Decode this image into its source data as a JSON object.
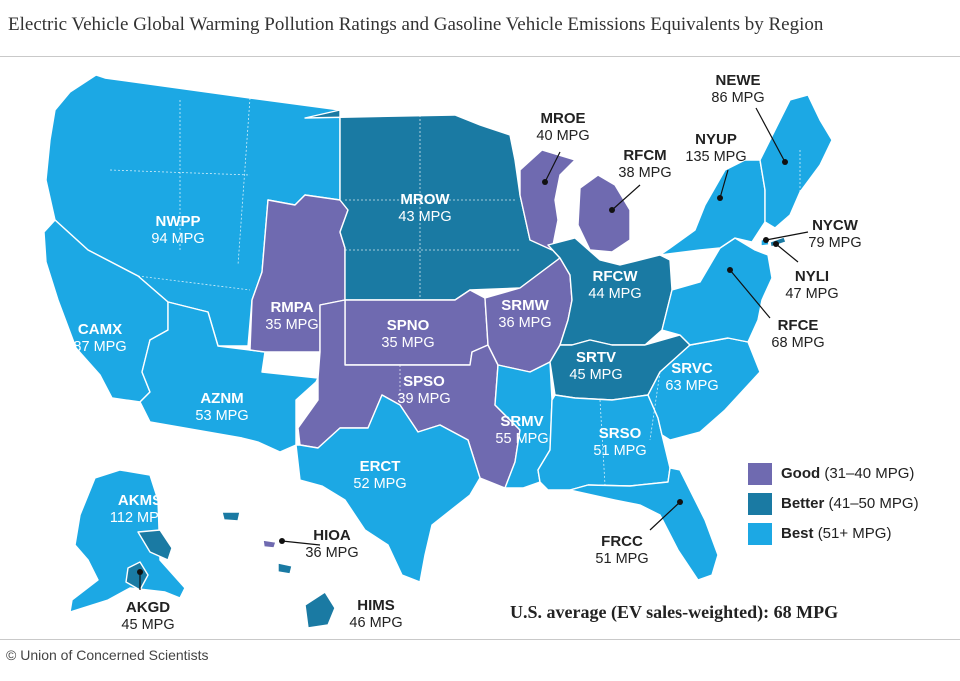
{
  "title": "Electric Vehicle Global Warming Pollution Ratings and Gasoline Vehicle Emissions Equivalents by Region",
  "colors": {
    "good": "#6f6ab0",
    "better": "#1a7aa3",
    "best": "#1ca8e4",
    "white": "#ffffff",
    "label_dark": "#222222"
  },
  "regions": [
    {
      "code": "NWPP",
      "mpg": "94 MPG",
      "category": "best"
    },
    {
      "code": "CAMX",
      "mpg": "87 MPG",
      "category": "best"
    },
    {
      "code": "AZNM",
      "mpg": "53 MPG",
      "category": "best"
    },
    {
      "code": "RMPA",
      "mpg": "35 MPG",
      "category": "good"
    },
    {
      "code": "MROW",
      "mpg": "43 MPG",
      "category": "better"
    },
    {
      "code": "SPNO",
      "mpg": "35 MPG",
      "category": "good"
    },
    {
      "code": "SPSO",
      "mpg": "39 MPG",
      "category": "good"
    },
    {
      "code": "ERCT",
      "mpg": "52 MPG",
      "category": "best"
    },
    {
      "code": "MROE",
      "mpg": "40 MPG",
      "category": "good"
    },
    {
      "code": "SRMW",
      "mpg": "36 MPG",
      "category": "good"
    },
    {
      "code": "SRMV",
      "mpg": "55 MPG",
      "category": "best"
    },
    {
      "code": "RFCM",
      "mpg": "38 MPG",
      "category": "good"
    },
    {
      "code": "RFCW",
      "mpg": "44 MPG",
      "category": "better"
    },
    {
      "code": "SRTV",
      "mpg": "45 MPG",
      "category": "better"
    },
    {
      "code": "SRSO",
      "mpg": "51 MPG",
      "category": "best"
    },
    {
      "code": "SRVC",
      "mpg": "63 MPG",
      "category": "best"
    },
    {
      "code": "FRCC",
      "mpg": "51 MPG",
      "category": "best"
    },
    {
      "code": "RFCE",
      "mpg": "68 MPG",
      "category": "best"
    },
    {
      "code": "NYUP",
      "mpg": "135 MPG",
      "category": "best"
    },
    {
      "code": "NEWE",
      "mpg": "86 MPG",
      "category": "best"
    },
    {
      "code": "NYCW",
      "mpg": "79 MPG",
      "category": "best"
    },
    {
      "code": "NYLI",
      "mpg": "47 MPG",
      "category": "better"
    },
    {
      "code": "AKMS",
      "mpg": "112 MPG",
      "category": "best"
    },
    {
      "code": "AKGD",
      "mpg": "45 MPG",
      "category": "better"
    },
    {
      "code": "HIOA",
      "mpg": "36 MPG",
      "category": "good"
    },
    {
      "code": "HIMS",
      "mpg": "46 MPG",
      "category": "better"
    }
  ],
  "legend": [
    {
      "name": "Good",
      "range": "(31–40 MPG)",
      "category": "good"
    },
    {
      "name": "Better",
      "range": "(41–50 MPG)",
      "category": "better"
    },
    {
      "name": "Best",
      "range": "(51+ MPG)",
      "category": "best"
    }
  ],
  "average_note": "U.S. average (EV sales-weighted): 68 MPG",
  "credit": "© Union of Concerned Scientists"
}
